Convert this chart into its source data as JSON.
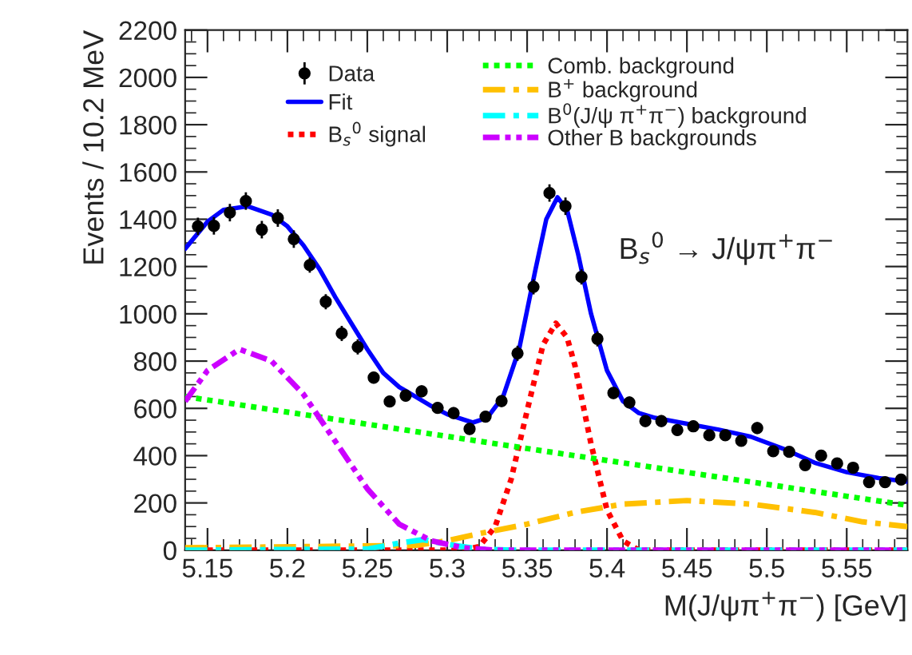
{
  "chart_data": {
    "type": "scatter",
    "xlabel": "M(J/ψπ$^{+}$π$^{−}$) [GeV]",
    "ylabel": "Events / 10.2 MeV",
    "annotations": [
      "B$_{s}$$^{0}$ → J/ψπ$^{+}$π$^{−}$"
    ],
    "xlim": [
      5.136,
      5.588
    ],
    "ylim": [
      0,
      2200
    ],
    "xticks": [
      {
        "value": 5.15,
        "label": "5.15"
      },
      {
        "value": 5.2,
        "label": "5.2"
      },
      {
        "value": 5.25,
        "label": "5.25"
      },
      {
        "value": 5.3,
        "label": "5.3"
      },
      {
        "value": 5.35,
        "label": "5.35"
      },
      {
        "value": 5.4,
        "label": "5.4"
      },
      {
        "value": 5.45,
        "label": "5.45"
      },
      {
        "value": 5.5,
        "label": "5.5"
      },
      {
        "value": 5.55,
        "label": "5.55"
      }
    ],
    "yticks": [
      0,
      200,
      400,
      600,
      800,
      1000,
      1200,
      1400,
      1600,
      1800,
      2000,
      2200
    ],
    "grid": false,
    "legend": "top",
    "series": [
      {
        "name": "Data",
        "color": "#000000",
        "marker": "circle",
        "x": [
          5.144,
          5.154,
          5.164,
          5.174,
          5.184,
          5.194,
          5.204,
          5.214,
          5.224,
          5.234,
          5.244,
          5.254,
          5.264,
          5.274,
          5.284,
          5.294,
          5.304,
          5.314,
          5.324,
          5.334,
          5.344,
          5.354,
          5.364,
          5.374,
          5.384,
          5.394,
          5.404,
          5.414,
          5.424,
          5.434,
          5.444,
          5.454,
          5.464,
          5.474,
          5.484,
          5.494,
          5.504,
          5.514,
          5.524,
          5.534,
          5.544,
          5.554,
          5.564,
          5.574,
          5.584
        ],
        "values": [
          1370,
          1372,
          1428,
          1477,
          1356,
          1405,
          1316,
          1206,
          1051,
          917,
          860,
          730,
          629,
          654,
          672,
          602,
          580,
          513,
          565,
          631,
          833,
          1114,
          1511,
          1455,
          1156,
          894,
          665,
          625,
          546,
          546,
          508,
          524,
          486,
          486,
          463,
          517,
          419,
          416,
          360,
          400,
          367,
          349,
          288,
          288,
          299
        ],
        "errors": [
          37,
          37,
          37,
          37,
          37,
          37,
          37,
          32,
          32,
          32,
          32,
          25,
          25,
          25,
          25,
          25,
          25,
          25,
          25,
          25,
          32,
          32,
          37,
          37,
          32,
          32,
          25,
          25,
          25,
          25,
          25,
          25,
          20,
          20,
          20,
          25,
          20,
          20,
          20,
          20,
          20,
          20,
          20,
          20,
          20
        ]
      },
      {
        "name": "Fit",
        "type": "line",
        "color": "#0000ff",
        "line_style": "solid",
        "x": [
          5.136,
          5.15,
          5.16,
          5.175,
          5.19,
          5.2,
          5.21,
          5.22,
          5.23,
          5.24,
          5.25,
          5.26,
          5.27,
          5.28,
          5.29,
          5.3,
          5.316,
          5.325,
          5.335,
          5.345,
          5.355,
          5.362,
          5.369,
          5.375,
          5.382,
          5.39,
          5.4,
          5.41,
          5.42,
          5.43,
          5.45,
          5.47,
          5.49,
          5.51,
          5.53,
          5.55,
          5.57,
          5.588
        ],
        "values": [
          1275,
          1390,
          1440,
          1455,
          1420,
          1370,
          1290,
          1190,
          1070,
          960,
          850,
          750,
          690,
          650,
          610,
          575,
          540,
          560,
          650,
          850,
          1180,
          1400,
          1493,
          1440,
          1250,
          1000,
          760,
          630,
          580,
          560,
          535,
          510,
          480,
          430,
          370,
          330,
          305,
          290
        ]
      },
      {
        "name": "B$_{s}$$^{0}$ signal",
        "type": "line",
        "color": "#ff0000",
        "line_style": "dotted",
        "x": [
          5.136,
          5.31,
          5.32,
          5.33,
          5.34,
          5.35,
          5.36,
          5.368,
          5.375,
          5.38,
          5.39,
          5.4,
          5.41,
          5.42,
          5.588
        ],
        "values": [
          0,
          0,
          15,
          100,
          300,
          590,
          870,
          960,
          900,
          780,
          450,
          170,
          40,
          0,
          0
        ]
      },
      {
        "name": "Comb. background",
        "type": "line",
        "color": "#00ff00",
        "line_style": "dotted",
        "x": [
          5.136,
          5.36,
          5.588
        ],
        "values": [
          650,
          420,
          190
        ]
      },
      {
        "name": "B$^{+}$ background",
        "type": "line",
        "color": "#ffc000",
        "line_style": "dashdot",
        "x": [
          5.136,
          5.28,
          5.3,
          5.32,
          5.35,
          5.38,
          5.41,
          5.45,
          5.49,
          5.53,
          5.56,
          5.588
        ],
        "values": [
          10,
          20,
          40,
          70,
          110,
          160,
          195,
          210,
          195,
          160,
          120,
          100
        ]
      },
      {
        "name": "B$^{0}$(J/ψ π$^{+}$π$^{−}$) background",
        "type": "line",
        "color": "#00ffff",
        "line_style": "dashdot",
        "x": [
          5.136,
          5.25,
          5.27,
          5.285,
          5.3,
          5.32,
          5.34,
          5.588
        ],
        "values": [
          0,
          5,
          30,
          45,
          25,
          5,
          0,
          0
        ]
      },
      {
        "name": "Other B backgrounds",
        "type": "line",
        "color": "#cc00ff",
        "line_style": "dashdotdot",
        "x": [
          5.136,
          5.15,
          5.17,
          5.19,
          5.21,
          5.23,
          5.25,
          5.27,
          5.29,
          5.31,
          5.33,
          5.588
        ],
        "values": [
          630,
          760,
          850,
          800,
          660,
          460,
          260,
          110,
          40,
          10,
          0,
          0
        ]
      }
    ]
  }
}
